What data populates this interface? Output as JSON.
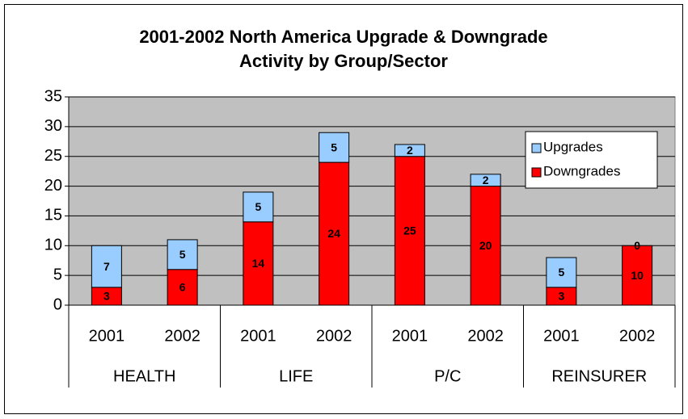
{
  "chart_data": {
    "type": "stacked_bar",
    "title": [
      "2001-2002 North America Upgrade & Downgrade",
      "Activity by Group/Sector"
    ],
    "categories": [
      "2001",
      "2002",
      "2001",
      "2002",
      "2001",
      "2002",
      "2001",
      "2002"
    ],
    "groups": [
      "HEALTH",
      "LIFE",
      "P/C",
      "REINSURER"
    ],
    "series": [
      {
        "name": "Downgrades",
        "color": "#ff0000",
        "values": [
          3,
          6,
          14,
          24,
          25,
          20,
          3,
          10
        ]
      },
      {
        "name": "Upgrades",
        "color": "#99ccff",
        "values": [
          7,
          5,
          5,
          5,
          2,
          2,
          5,
          0
        ]
      }
    ],
    "ylim": [
      0,
      35
    ],
    "yticks": [
      0,
      5,
      10,
      15,
      20,
      25,
      30,
      35
    ],
    "grid": true,
    "legend": "right"
  }
}
